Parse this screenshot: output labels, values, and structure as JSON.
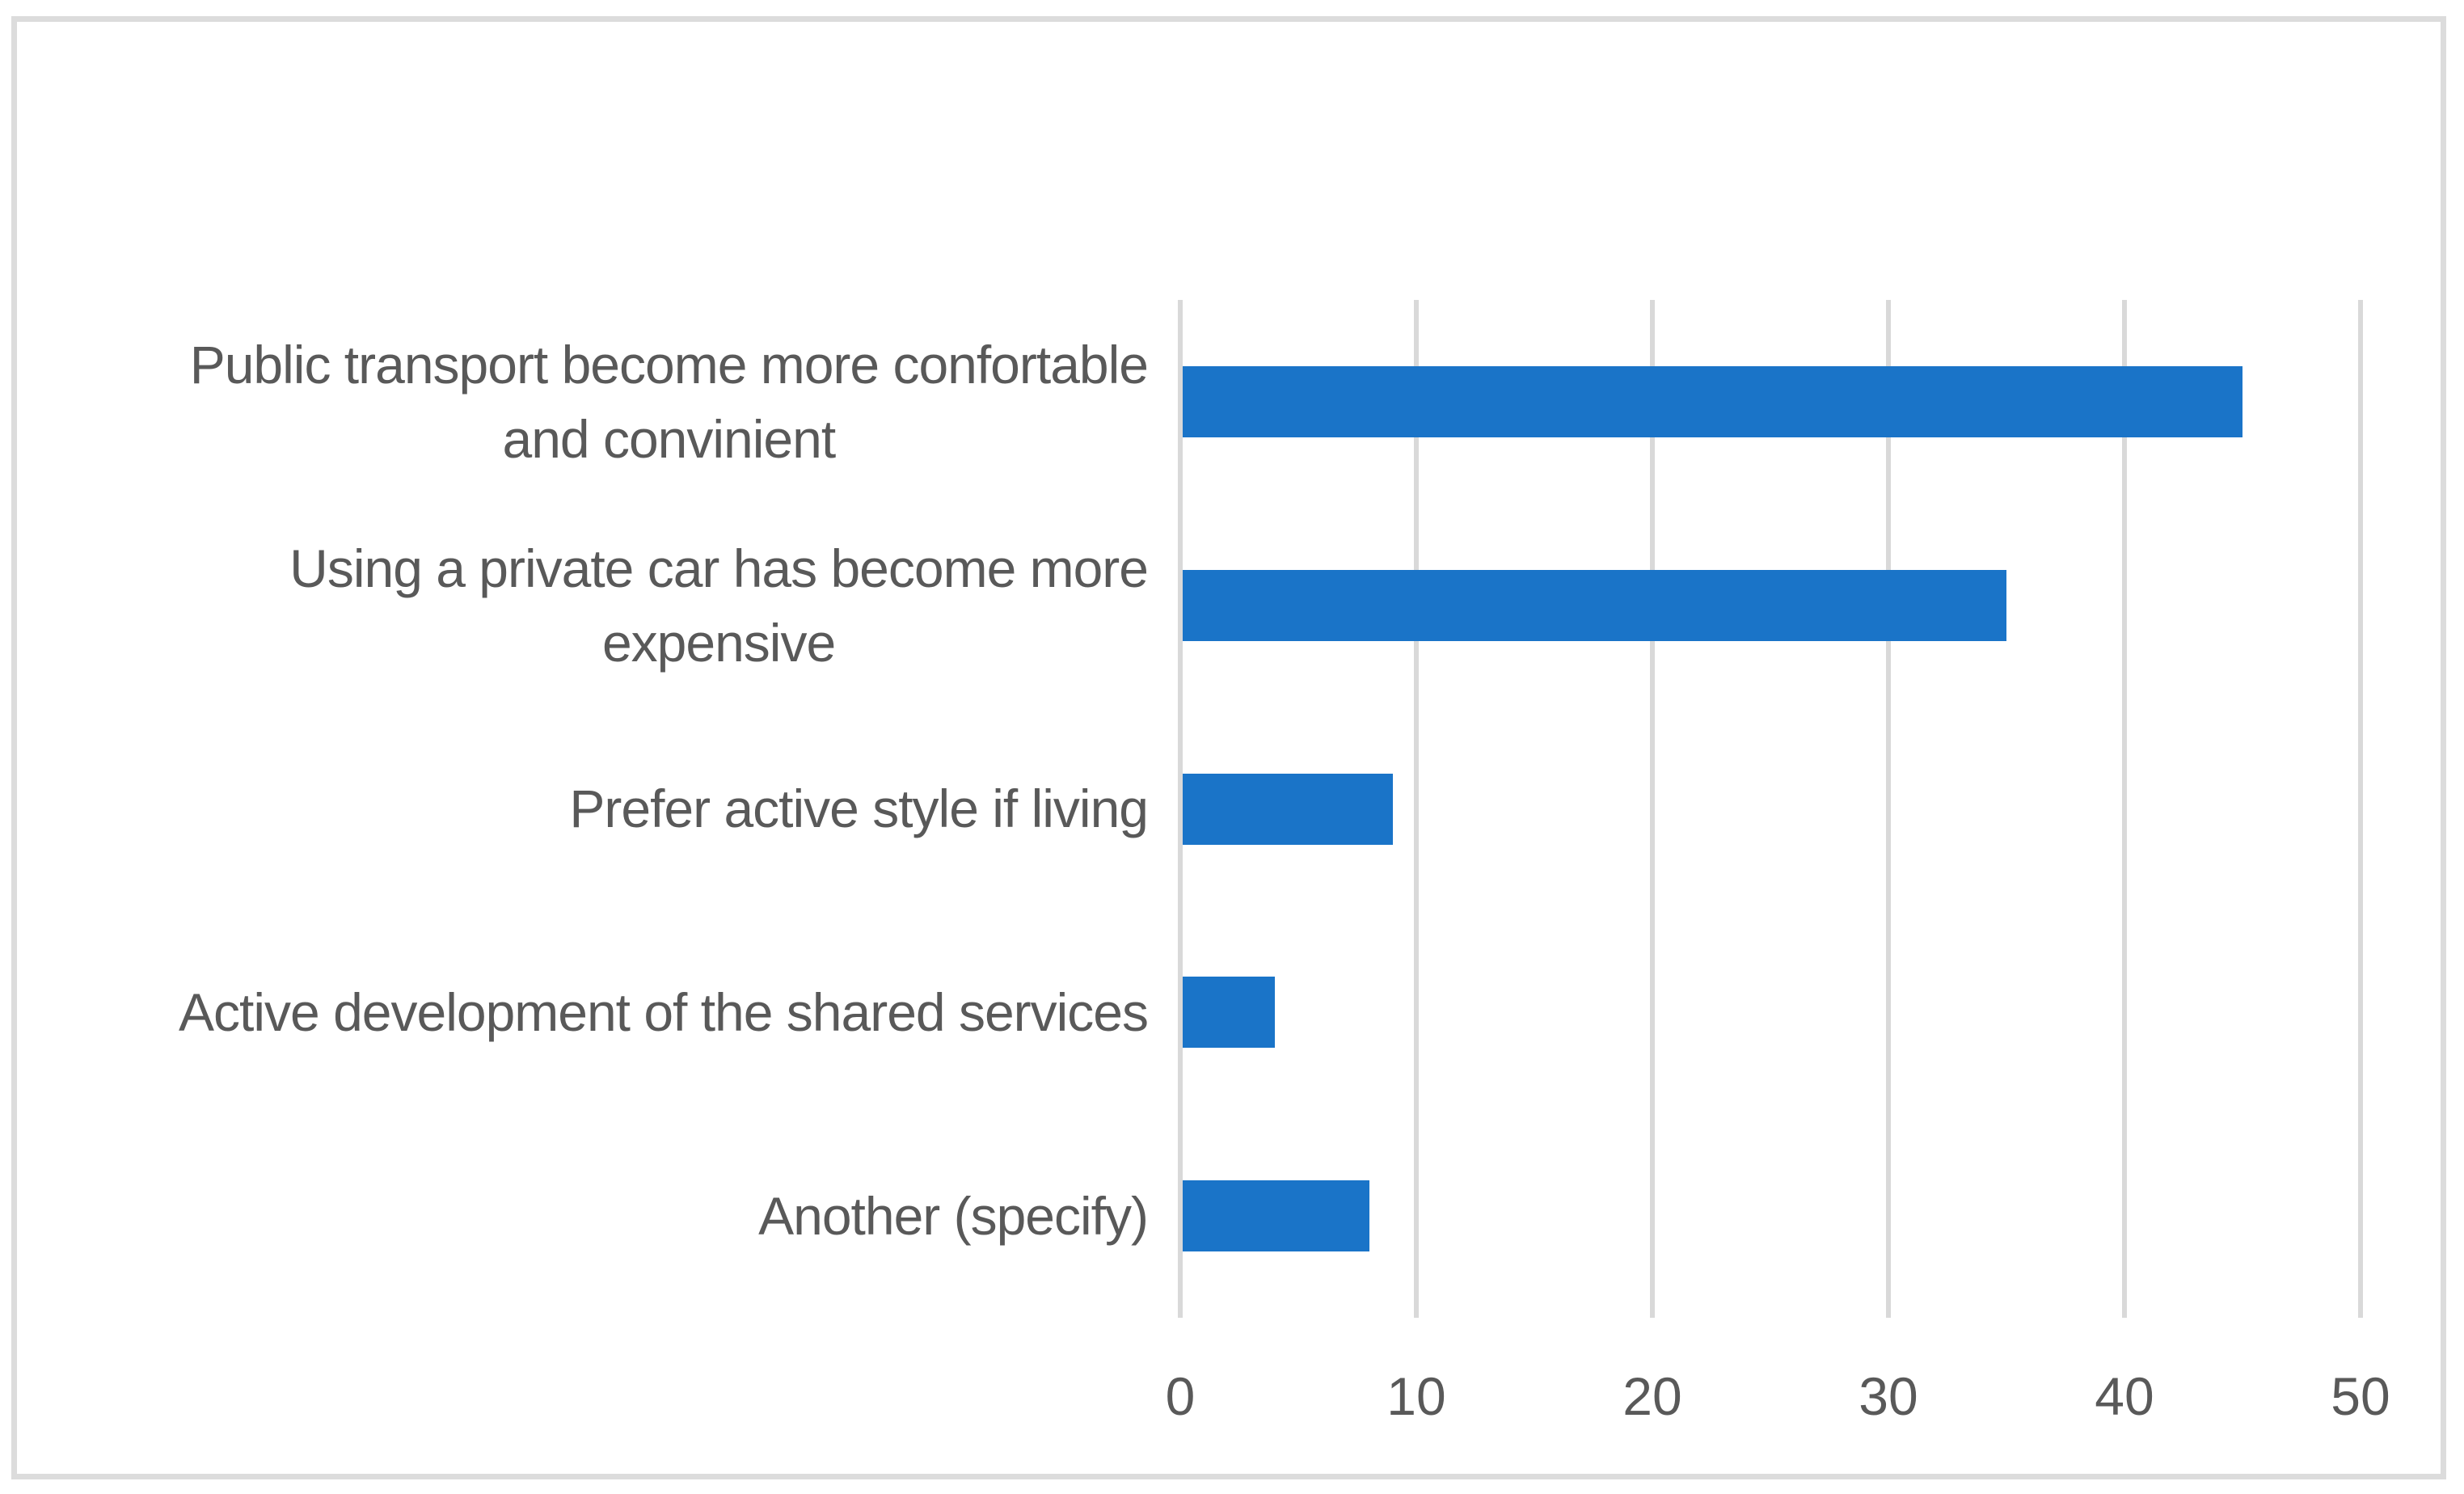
{
  "chart_data": {
    "type": "bar",
    "orientation": "horizontal",
    "order": "top-to-bottom",
    "title": "",
    "xlabel": "",
    "ylabel": "",
    "categories": [
      [
        "Public transport become more confortable",
        "and convinient"
      ],
      [
        "Using a private car has become more",
        "expensive"
      ],
      [
        "Prefer active style if living"
      ],
      [
        "Active development of the shared services"
      ],
      [
        "Another (specify)"
      ]
    ],
    "values": [
      45,
      35,
      9,
      4,
      8
    ],
    "xlim": [
      0,
      50
    ],
    "xticks": [
      0,
      10,
      20,
      30,
      40,
      50
    ],
    "xtick_labels": [
      "0",
      "10",
      "20",
      "30",
      "40",
      "50"
    ],
    "grid": true,
    "legend": false,
    "bar_color": "#1a74c8"
  },
  "ui": {
    "colors": {
      "bar": "#1a74c8",
      "gridline": "#d9d9d9",
      "frame_border": "#dcdcdc",
      "text": "#595959",
      "background": "#ffffff"
    }
  }
}
